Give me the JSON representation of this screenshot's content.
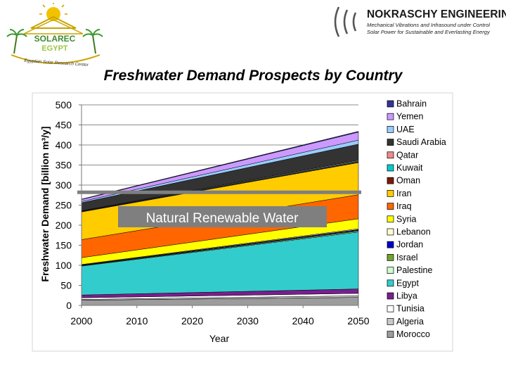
{
  "header": {
    "left_logo": {
      "name": "SOLAREC",
      "sub": "EGYPT",
      "ring_text": "Egyptian Solar Research Center"
    },
    "right_logo": {
      "company": "NOKRASCHY ENGINEERING",
      "tagline1": "Mechanical Vibrations and Infrasound under Control",
      "tagline2": "Solar Power for Sustainable and Everlasting Energy"
    },
    "title": "Freshwater Demand Prospects by Country"
  },
  "chart_data": {
    "type": "area",
    "stacked": true,
    "xlabel": "Year",
    "ylabel": "Freshwater Demand [billion m³/y]",
    "x": [
      2000,
      2050
    ],
    "xticks": [
      2000,
      2010,
      2020,
      2030,
      2040,
      2050
    ],
    "ylim": [
      0,
      500
    ],
    "yticks": [
      0,
      50,
      100,
      150,
      200,
      250,
      300,
      350,
      400,
      450,
      500
    ],
    "grid": "horizontal",
    "legend_position": "right",
    "series": [
      {
        "name": "Morocco",
        "values": [
          13,
          20
        ],
        "color": "#9c9c9c"
      },
      {
        "name": "Algeria",
        "values": [
          2,
          4
        ],
        "color": "#c9c9c9"
      },
      {
        "name": "Tunisia",
        "values": [
          4,
          6
        ],
        "color": "#ffffff"
      },
      {
        "name": "Libya",
        "values": [
          7,
          11
        ],
        "color": "#7a1f8e"
      },
      {
        "name": "Egypt",
        "values": [
          72,
          142
        ],
        "color": "#33cccc"
      },
      {
        "name": "Palestine",
        "values": [
          1,
          2
        ],
        "color": "#ccffcc"
      },
      {
        "name": "Israel",
        "values": [
          1,
          2
        ],
        "color": "#6fa52a"
      },
      {
        "name": "Jordan",
        "values": [
          1,
          2
        ],
        "color": "#0000cc"
      },
      {
        "name": "Lebanon",
        "values": [
          1,
          2
        ],
        "color": "#ffffcc"
      },
      {
        "name": "Syria",
        "values": [
          17,
          25
        ],
        "color": "#ffff00"
      },
      {
        "name": "Iraq",
        "values": [
          45,
          60
        ],
        "color": "#ff6600"
      },
      {
        "name": "Iran",
        "values": [
          69,
          80
        ],
        "color": "#ffcc00"
      },
      {
        "name": "Oman",
        "values": [
          1,
          2
        ],
        "color": "#7a1a00"
      },
      {
        "name": "Kuwait",
        "values": [
          1,
          2
        ],
        "color": "#00cccc"
      },
      {
        "name": "Qatar",
        "values": [
          1,
          2
        ],
        "color": "#f08a8a"
      },
      {
        "name": "Saudi Arabia",
        "values": [
          20,
          40
        ],
        "color": "#333333"
      },
      {
        "name": "UAE",
        "values": [
          3,
          10
        ],
        "color": "#99ccff"
      },
      {
        "name": "Yemen",
        "values": [
          5,
          20
        ],
        "color": "#cc99ff"
      },
      {
        "name": "Bahrain",
        "values": [
          1,
          2
        ],
        "color": "#333399"
      }
    ],
    "annotations": [
      {
        "text": "Natural Renewable Water",
        "y": 282
      }
    ]
  }
}
